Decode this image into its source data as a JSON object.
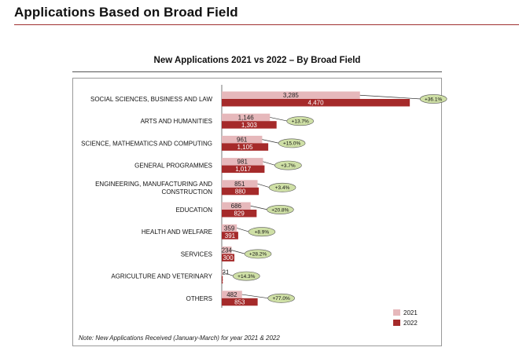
{
  "page": {
    "title": "Applications Based on Broad Field"
  },
  "chart_data": {
    "type": "bar",
    "orientation": "horizontal",
    "title": "New Applications 2021 vs 2022 – By Broad Field",
    "categories": [
      [
        "SOCIAL SCIENCES, BUSINESS AND LAW"
      ],
      [
        "ARTS AND HUMANITIES"
      ],
      [
        "SCIENCE, MATHEMATICS AND COMPUTING"
      ],
      [
        "GENERAL PROGRAMMES"
      ],
      [
        "ENGINEERING, MANUFACTURING AND",
        "CONSTRUCTION"
      ],
      [
        "EDUCATION"
      ],
      [
        "HEALTH AND WELFARE"
      ],
      [
        "SERVICES"
      ],
      [
        "AGRICULTURE AND VETERINARY"
      ],
      [
        "OTHERS"
      ]
    ],
    "series": [
      {
        "name": "2021",
        "color": "#e6b8bb",
        "values": [
          3285,
          1146,
          961,
          981,
          851,
          686,
          359,
          234,
          21,
          482
        ],
        "labels": [
          "3,285",
          "1,146",
          "961",
          "981",
          "851",
          "686",
          "359",
          "234",
          "21",
          "482"
        ]
      },
      {
        "name": "2022",
        "color": "#a52a2a",
        "values": [
          4470,
          1303,
          1105,
          1017,
          880,
          829,
          391,
          300,
          24,
          853
        ],
        "labels": [
          "4,470",
          "1,303",
          "1,105",
          "1,017",
          "880",
          "829",
          "391",
          "300",
          "24",
          "853"
        ]
      }
    ],
    "change_labels": [
      "+36.1%",
      "+13.7%",
      "+15.0%",
      "+3.7%",
      "+3.4%",
      "+20.8%",
      "+8.9%",
      "+28.2%",
      "+14.3%",
      "+77.0%"
    ],
    "change_badge_color": "#cfe0a6",
    "legend_position": "bottom-right",
    "grid": false,
    "note": "Note: New Applications Received (January-March) for year 2021 & 2022"
  }
}
